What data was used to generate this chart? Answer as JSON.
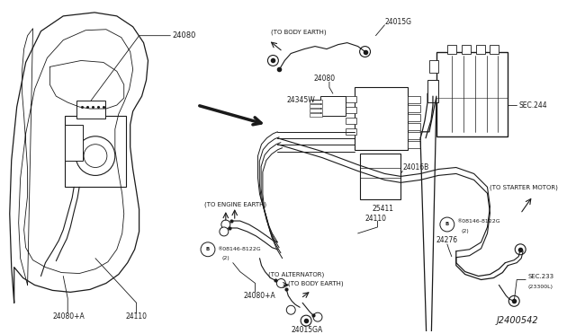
{
  "bg_color": "#ffffff",
  "line_color": "#1a1a1a",
  "fig_width": 6.4,
  "fig_height": 3.72,
  "dpi": 100,
  "labels": {
    "24080_top": "24080",
    "24080_right": "24080",
    "24015G": "24015G",
    "24345W": "24345W",
    "24016B": "24016B",
    "25411": "25411",
    "24110_center": "24110",
    "24110_left": "24110",
    "24080A_left": "24080+A",
    "24080A_center": "24080+A",
    "24015GA": "24015GA",
    "24276": "24276",
    "SEC244": "SEC.244",
    "SEC233": "SEC.233",
    "23300L": "(23300L)",
    "J2400542": "J2400542",
    "to_body_earth_top": "(TO BODY EARTH)",
    "to_engine_earth": "(TO ENGINE EARTH)",
    "to_alternator": "(TO ALTERNATOR)",
    "to_body_earth_bot": "(TO BODY EARTH)",
    "to_starter_motor": "(TO STARTER MOTOR)",
    "08146_left": "®08146-8122G",
    "2_left": "(2)",
    "08146_right": "®08146-8122G",
    "2_right": "(2)"
  }
}
